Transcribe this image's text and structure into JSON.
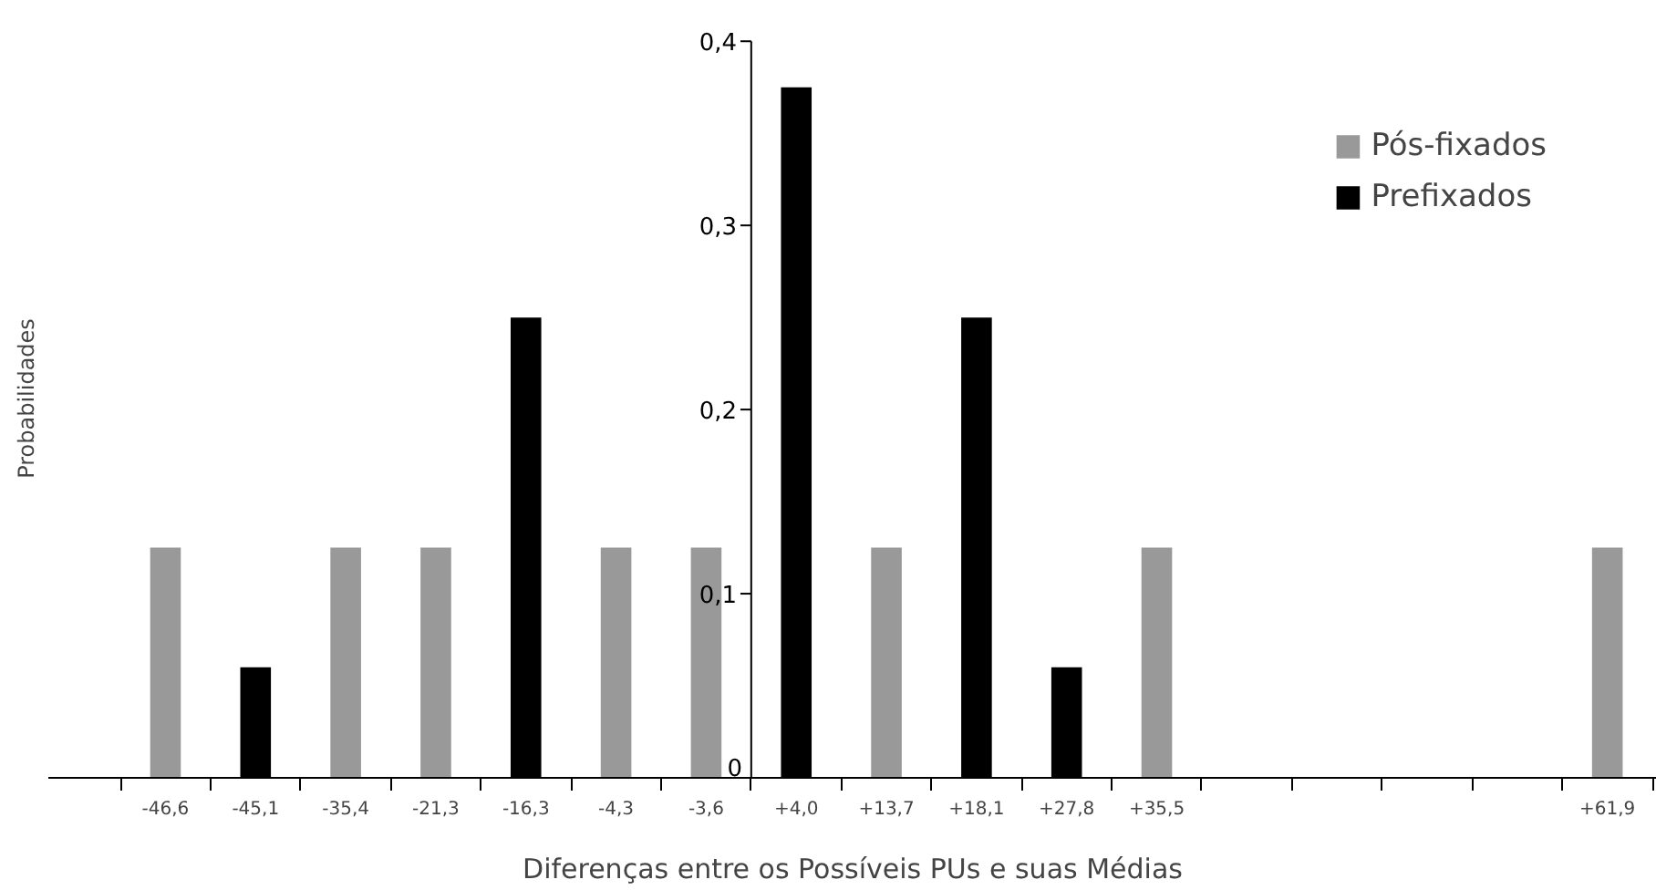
{
  "chart_data": {
    "type": "bar",
    "xlabel": "Diferenças entre os Possíveis PUs e suas Médias",
    "ylabel": "Probabilidades",
    "categories": [
      "-46,6",
      "-45,1",
      "-35,4",
      "-21,3",
      "-16,3",
      "-4,3",
      "-3,6",
      "+4,0",
      "+13,7",
      "+18,1",
      "+27,8",
      "+35,5",
      null,
      null,
      null,
      null,
      "+61,9"
    ],
    "series": [
      {
        "name": "Pós-fixados",
        "color": "#999999",
        "values": [
          0.125,
          null,
          0.125,
          0.125,
          null,
          0.125,
          0.125,
          null,
          0.125,
          null,
          null,
          0.125,
          null,
          null,
          null,
          null,
          0.125
        ]
      },
      {
        "name": "Prefixados",
        "color": "#000000",
        "values": [
          null,
          0.06,
          null,
          null,
          0.25,
          null,
          null,
          0.375,
          null,
          0.25,
          0.06,
          null,
          null,
          null,
          null,
          null,
          null
        ]
      }
    ],
    "ylim": [
      0,
      0.4
    ],
    "yticks": [
      0,
      {
        "value": 0.1,
        "label": "0,1"
      },
      {
        "value": 0.2,
        "label": "0,2"
      },
      {
        "value": 0.3,
        "label": "0,3"
      },
      {
        "value": 0.4,
        "label": "0,4"
      }
    ],
    "grid": false,
    "legend": "top right"
  }
}
